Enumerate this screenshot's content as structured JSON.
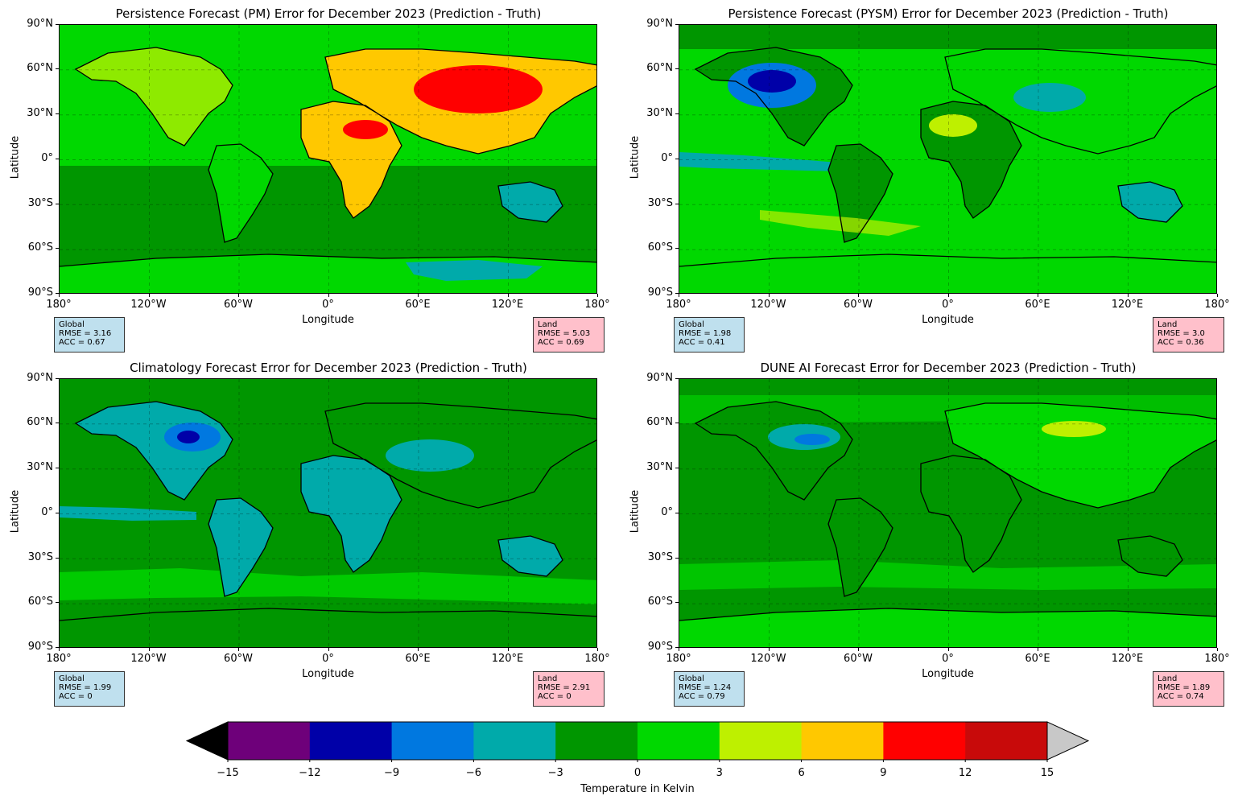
{
  "panels": [
    {
      "title": "Persistence Forecast (PM) Error for December 2023 (Prediction - Truth)",
      "xlabel": "Longitude",
      "ylabel": "Latitude",
      "global": {
        "label": "Global",
        "rmse": "RMSE = 3.16",
        "acc": "ACC = 0.67"
      },
      "land": {
        "label": "Land",
        "rmse": "RMSE = 5.03",
        "acc": "ACC = 0.69"
      }
    },
    {
      "title": "Persistence Forecast (PYSM) Error for December 2023 (Prediction - Truth)",
      "xlabel": "Longitude",
      "ylabel": "Latitude",
      "global": {
        "label": "Global",
        "rmse": "RMSE = 1.98",
        "acc": "ACC = 0.41"
      },
      "land": {
        "label": "Land",
        "rmse": "RMSE = 3.0",
        "acc": "ACC = 0.36"
      }
    },
    {
      "title": "Climatology Forecast Error for December 2023 (Prediction - Truth)",
      "xlabel": "Longitude",
      "ylabel": "Latitude",
      "global": {
        "label": "Global",
        "rmse": "RMSE = 1.99",
        "acc": "ACC = 0"
      },
      "land": {
        "label": "Land",
        "rmse": "RMSE = 2.91",
        "acc": "ACC = 0"
      }
    },
    {
      "title": "DUNE AI Forecast Error for December 2023 (Prediction - Truth)",
      "xlabel": "Longitude",
      "ylabel": "Latitude",
      "global": {
        "label": "Global",
        "rmse": "RMSE = 1.24",
        "acc": "ACC = 0.79"
      },
      "land": {
        "label": "Land",
        "rmse": "RMSE = 1.89",
        "acc": "ACC = 0.74"
      }
    }
  ],
  "lat_ticks": [
    "90°N",
    "60°N",
    "30°N",
    "0°",
    "30°S",
    "60°S",
    "90°S"
  ],
  "lon_ticks": [
    "180°",
    "120°W",
    "60°W",
    "0°",
    "60°E",
    "120°E",
    "180°"
  ],
  "colorbar": {
    "label": "Temperature in Kelvin",
    "ticks": [
      "−15",
      "−12",
      "−9",
      "−6",
      "−3",
      "0",
      "3",
      "6",
      "9",
      "12",
      "15"
    ],
    "colors": [
      "#6e007a",
      "#0000a8",
      "#0078e0",
      "#00aaaa",
      "#009600",
      "#00d800",
      "#bef000",
      "#ffc800",
      "#ff0000",
      "#c80a0a"
    ],
    "under_color": "#000000",
    "over_color": "#c8c8c8"
  }
}
